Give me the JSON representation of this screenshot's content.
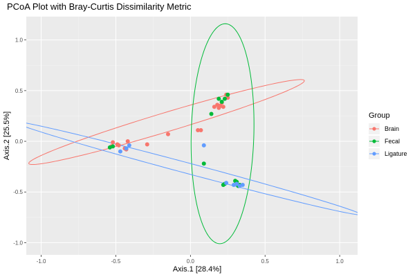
{
  "chart_data": {
    "type": "scatter",
    "title": "PCoA Plot with Bray-Curtis Dissimilarity Metric",
    "xlabel": "Axis.1   [28.4%]",
    "ylabel": "Axis.2   [25.5%]",
    "xlim": [
      -1.1,
      1.12
    ],
    "ylim": [
      -1.12,
      1.23
    ],
    "x_ticks": [
      -1.0,
      -0.5,
      0.0,
      0.5,
      1.0
    ],
    "x_tick_labels": [
      "-1.0",
      "-0.5",
      "0.0",
      "0.5",
      "1.0"
    ],
    "y_ticks": [
      -1.0,
      -0.5,
      0.0,
      0.5,
      1.0
    ],
    "y_tick_labels": [
      "-1.0",
      "-0.5",
      "0.0",
      "0.5",
      "1.0"
    ],
    "grid": true,
    "legend": {
      "title": "Group",
      "placement": "right"
    },
    "series": [
      {
        "name": "Brain",
        "color": "#F8766D",
        "points": [
          [
            -0.53,
            -0.05
          ],
          [
            -0.52,
            -0.01
          ],
          [
            -0.49,
            -0.03
          ],
          [
            -0.48,
            -0.04
          ],
          [
            -0.44,
            -0.07
          ],
          [
            -0.43,
            -0.08
          ],
          [
            -0.42,
            0.0
          ],
          [
            -0.29,
            -0.03
          ],
          [
            -0.15,
            0.07
          ],
          [
            0.05,
            0.11
          ],
          [
            0.07,
            0.11
          ],
          [
            0.16,
            0.34
          ],
          [
            0.18,
            0.36
          ],
          [
            0.19,
            0.33
          ],
          [
            0.2,
            0.35
          ],
          [
            0.21,
            0.38
          ],
          [
            0.22,
            0.34
          ],
          [
            0.24,
            0.46
          ],
          [
            0.25,
            0.43
          ]
        ],
        "ellipse": {
          "center": [
            -0.16,
            0.19
          ],
          "semi_major": 1.01,
          "semi_minor": 0.09,
          "angle_deg": 24
        }
      },
      {
        "name": "Fecal",
        "color": "#00BA38",
        "points": [
          [
            -0.54,
            -0.06
          ],
          [
            -0.52,
            -0.05
          ],
          [
            0.09,
            -0.22
          ],
          [
            0.14,
            0.27
          ],
          [
            0.19,
            0.42
          ],
          [
            0.23,
            0.42
          ],
          [
            0.25,
            0.46
          ],
          [
            0.22,
            -0.43
          ],
          [
            0.23,
            -0.42
          ],
          [
            0.3,
            -0.39
          ],
          [
            0.31,
            -0.4
          ],
          [
            0.32,
            -0.44
          ],
          [
            0.33,
            -0.43
          ],
          [
            0.21,
            0.39
          ]
        ],
        "ellipse": {
          "center": [
            0.215,
            0.075
          ],
          "semi_major": 1.085,
          "semi_minor": 0.21,
          "angle_deg": 89
        }
      },
      {
        "name": "Ligature",
        "color": "#619CFF",
        "points": [
          [
            -0.47,
            -0.1
          ],
          [
            -0.43,
            -0.07
          ],
          [
            -0.41,
            -0.04
          ],
          [
            0.09,
            -0.04
          ],
          [
            0.24,
            -0.41
          ],
          [
            0.29,
            -0.43
          ],
          [
            0.31,
            -0.42
          ],
          [
            0.33,
            -0.44
          ],
          [
            0.35,
            -0.43
          ]
        ],
        "ellipse": {
          "center": [
            -0.02,
            -0.265
          ],
          "semi_major": 1.25,
          "semi_minor": 0.05,
          "angle_deg": -21.5
        }
      }
    ]
  }
}
